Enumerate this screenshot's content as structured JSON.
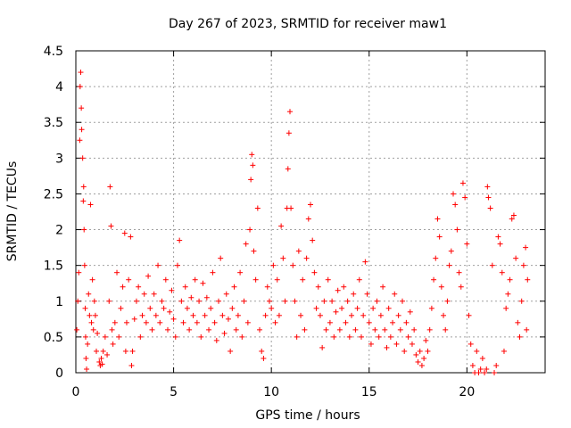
{
  "chart_data": {
    "type": "scatter",
    "title": "Day 267 of 2023, SRMTID for receiver maw1",
    "xlabel": "GPS time / hours",
    "ylabel": "SRMTID / TECUs",
    "xlim": [
      0,
      24
    ],
    "ylim": [
      0,
      4.5
    ],
    "x_ticks": [
      0,
      5,
      10,
      15,
      20
    ],
    "y_ticks": [
      0,
      0.5,
      1,
      1.5,
      2,
      2.5,
      3,
      3.5,
      4,
      4.5
    ],
    "x_tick_labels": [
      "0",
      "5",
      "10",
      "15",
      "20"
    ],
    "y_tick_labels": [
      "0",
      "0.5",
      "1",
      "1.5",
      "2",
      "2.5",
      "3",
      "3.5",
      "4",
      "4.5"
    ],
    "grid": true,
    "marker": "+",
    "color": "#ff0000",
    "series": [
      {
        "name": "maw1",
        "points": [
          [
            0.05,
            0.6
          ],
          [
            0.1,
            1.0
          ],
          [
            0.15,
            1.4
          ],
          [
            0.2,
            3.25
          ],
          [
            0.22,
            4.0
          ],
          [
            0.25,
            4.2
          ],
          [
            0.28,
            3.7
          ],
          [
            0.3,
            3.4
          ],
          [
            0.35,
            3.0
          ],
          [
            0.38,
            2.4
          ],
          [
            0.4,
            2.6
          ],
          [
            0.42,
            2.0
          ],
          [
            0.45,
            1.5
          ],
          [
            0.48,
            0.9
          ],
          [
            0.5,
            0.5
          ],
          [
            0.52,
            0.2
          ],
          [
            0.55,
            0.05
          ],
          [
            0.6,
            0.4
          ],
          [
            0.65,
            1.1
          ],
          [
            0.7,
            0.8
          ],
          [
            0.75,
            2.35
          ],
          [
            0.8,
            0.7
          ],
          [
            0.85,
            1.3
          ],
          [
            0.9,
            0.6
          ],
          [
            0.95,
            1.0
          ],
          [
            1.0,
            0.8
          ],
          [
            1.05,
            0.3
          ],
          [
            1.1,
            0.55
          ],
          [
            1.2,
            0.15
          ],
          [
            1.25,
            0.1
          ],
          [
            1.3,
            0.2
          ],
          [
            1.35,
            0.12
          ],
          [
            1.4,
            0.3
          ],
          [
            1.5,
            0.5
          ],
          [
            1.6,
            0.25
          ],
          [
            1.7,
            1.0
          ],
          [
            1.75,
            2.6
          ],
          [
            1.8,
            2.05
          ],
          [
            1.85,
            0.6
          ],
          [
            1.9,
            0.4
          ],
          [
            2.0,
            0.7
          ],
          [
            2.1,
            1.4
          ],
          [
            2.2,
            0.5
          ],
          [
            2.3,
            0.9
          ],
          [
            2.4,
            1.2
          ],
          [
            2.5,
            1.95
          ],
          [
            2.55,
            0.3
          ],
          [
            2.6,
            0.7
          ],
          [
            2.7,
            1.3
          ],
          [
            2.8,
            1.9
          ],
          [
            2.85,
            0.1
          ],
          [
            2.9,
            0.3
          ],
          [
            3.0,
            0.75
          ],
          [
            3.1,
            1.0
          ],
          [
            3.2,
            1.2
          ],
          [
            3.3,
            0.5
          ],
          [
            3.4,
            0.8
          ],
          [
            3.5,
            1.1
          ],
          [
            3.6,
            0.7
          ],
          [
            3.7,
            1.35
          ],
          [
            3.8,
            0.9
          ],
          [
            3.9,
            0.6
          ],
          [
            4.0,
            1.1
          ],
          [
            4.1,
            0.8
          ],
          [
            4.2,
            1.5
          ],
          [
            4.3,
            0.7
          ],
          [
            4.4,
            1.0
          ],
          [
            4.5,
            0.9
          ],
          [
            4.6,
            1.3
          ],
          [
            4.7,
            0.6
          ],
          [
            4.8,
            0.85
          ],
          [
            4.9,
            1.15
          ],
          [
            5.0,
            0.75
          ],
          [
            5.1,
            0.5
          ],
          [
            5.2,
            1.5
          ],
          [
            5.3,
            1.85
          ],
          [
            5.4,
            1.0
          ],
          [
            5.5,
            0.7
          ],
          [
            5.6,
            1.2
          ],
          [
            5.7,
            0.9
          ],
          [
            5.8,
            0.6
          ],
          [
            5.9,
            1.05
          ],
          [
            6.0,
            0.8
          ],
          [
            6.1,
            1.3
          ],
          [
            6.2,
            0.7
          ],
          [
            6.3,
            1.0
          ],
          [
            6.4,
            0.5
          ],
          [
            6.5,
            1.25
          ],
          [
            6.6,
            0.8
          ],
          [
            6.7,
            1.05
          ],
          [
            6.8,
            0.6
          ],
          [
            6.9,
            0.9
          ],
          [
            7.0,
            1.4
          ],
          [
            7.1,
            0.7
          ],
          [
            7.2,
            0.45
          ],
          [
            7.3,
            1.0
          ],
          [
            7.4,
            1.6
          ],
          [
            7.5,
            0.8
          ],
          [
            7.6,
            0.55
          ],
          [
            7.7,
            1.1
          ],
          [
            7.8,
            0.75
          ],
          [
            7.9,
            0.3
          ],
          [
            8.0,
            0.9
          ],
          [
            8.1,
            1.2
          ],
          [
            8.2,
            0.6
          ],
          [
            8.3,
            0.8
          ],
          [
            8.4,
            1.4
          ],
          [
            8.5,
            0.5
          ],
          [
            8.6,
            1.0
          ],
          [
            8.7,
            1.8
          ],
          [
            8.8,
            0.7
          ],
          [
            8.9,
            2.0
          ],
          [
            8.95,
            2.7
          ],
          [
            9.0,
            3.05
          ],
          [
            9.05,
            2.9
          ],
          [
            9.1,
            1.7
          ],
          [
            9.2,
            1.3
          ],
          [
            9.3,
            2.3
          ],
          [
            9.4,
            0.6
          ],
          [
            9.5,
            0.3
          ],
          [
            9.6,
            0.2
          ],
          [
            9.7,
            0.8
          ],
          [
            9.8,
            1.2
          ],
          [
            9.9,
            1.0
          ],
          [
            10.0,
            0.9
          ],
          [
            10.1,
            1.5
          ],
          [
            10.2,
            0.7
          ],
          [
            10.3,
            1.3
          ],
          [
            10.4,
            0.8
          ],
          [
            10.5,
            2.05
          ],
          [
            10.6,
            1.6
          ],
          [
            10.7,
            1.0
          ],
          [
            10.8,
            2.3
          ],
          [
            10.85,
            2.85
          ],
          [
            10.9,
            3.35
          ],
          [
            10.95,
            3.65
          ],
          [
            11.0,
            2.3
          ],
          [
            11.1,
            1.5
          ],
          [
            11.2,
            1.0
          ],
          [
            11.3,
            0.5
          ],
          [
            11.4,
            1.7
          ],
          [
            11.5,
            0.8
          ],
          [
            11.6,
            1.3
          ],
          [
            11.7,
            0.6
          ],
          [
            11.8,
            1.6
          ],
          [
            11.9,
            2.15
          ],
          [
            12.0,
            2.35
          ],
          [
            12.1,
            1.85
          ],
          [
            12.2,
            1.4
          ],
          [
            12.3,
            0.9
          ],
          [
            12.4,
            1.2
          ],
          [
            12.5,
            0.8
          ],
          [
            12.6,
            0.35
          ],
          [
            12.7,
            1.0
          ],
          [
            12.8,
            0.6
          ],
          [
            12.9,
            1.3
          ],
          [
            13.0,
            0.7
          ],
          [
            13.1,
            1.0
          ],
          [
            13.2,
            0.5
          ],
          [
            13.3,
            0.85
          ],
          [
            13.4,
            1.15
          ],
          [
            13.5,
            0.6
          ],
          [
            13.6,
            0.9
          ],
          [
            13.7,
            1.2
          ],
          [
            13.8,
            0.7
          ],
          [
            13.9,
            1.0
          ],
          [
            14.0,
            0.5
          ],
          [
            14.1,
            0.8
          ],
          [
            14.2,
            1.1
          ],
          [
            14.3,
            0.6
          ],
          [
            14.4,
            0.9
          ],
          [
            14.5,
            1.3
          ],
          [
            14.6,
            0.5
          ],
          [
            14.7,
            0.8
          ],
          [
            14.8,
            1.55
          ],
          [
            14.9,
            1.1
          ],
          [
            15.0,
            0.7
          ],
          [
            15.1,
            0.4
          ],
          [
            15.2,
            0.9
          ],
          [
            15.3,
            0.6
          ],
          [
            15.4,
            1.0
          ],
          [
            15.5,
            0.5
          ],
          [
            15.6,
            0.8
          ],
          [
            15.7,
            1.2
          ],
          [
            15.8,
            0.6
          ],
          [
            15.9,
            0.35
          ],
          [
            16.0,
            0.9
          ],
          [
            16.1,
            0.5
          ],
          [
            16.2,
            0.7
          ],
          [
            16.3,
            1.1
          ],
          [
            16.4,
            0.4
          ],
          [
            16.5,
            0.8
          ],
          [
            16.6,
            0.6
          ],
          [
            16.7,
            1.0
          ],
          [
            16.8,
            0.3
          ],
          [
            16.9,
            0.7
          ],
          [
            17.0,
            0.5
          ],
          [
            17.1,
            0.85
          ],
          [
            17.2,
            0.4
          ],
          [
            17.3,
            0.6
          ],
          [
            17.4,
            0.25
          ],
          [
            17.5,
            0.15
          ],
          [
            17.6,
            0.3
          ],
          [
            17.7,
            0.1
          ],
          [
            17.8,
            0.2
          ],
          [
            17.9,
            0.45
          ],
          [
            18.0,
            0.3
          ],
          [
            18.1,
            0.6
          ],
          [
            18.2,
            0.9
          ],
          [
            18.3,
            1.3
          ],
          [
            18.4,
            1.6
          ],
          [
            18.5,
            2.15
          ],
          [
            18.6,
            1.9
          ],
          [
            18.7,
            1.2
          ],
          [
            18.8,
            0.8
          ],
          [
            18.9,
            0.6
          ],
          [
            19.0,
            1.0
          ],
          [
            19.1,
            1.5
          ],
          [
            19.2,
            1.7
          ],
          [
            19.3,
            2.5
          ],
          [
            19.4,
            2.35
          ],
          [
            19.5,
            2.0
          ],
          [
            19.6,
            1.4
          ],
          [
            19.7,
            1.2
          ],
          [
            19.8,
            2.65
          ],
          [
            19.9,
            2.45
          ],
          [
            20.0,
            1.8
          ],
          [
            20.1,
            0.8
          ],
          [
            20.2,
            0.4
          ],
          [
            20.3,
            0.1
          ],
          [
            20.4,
            0.0
          ],
          [
            20.5,
            0.3
          ],
          [
            20.6,
            0.0
          ],
          [
            20.7,
            0.05
          ],
          [
            20.8,
            0.2
          ],
          [
            20.9,
            0.0
          ],
          [
            21.0,
            0.05
          ],
          [
            21.05,
            2.6
          ],
          [
            21.1,
            2.45
          ],
          [
            21.2,
            2.3
          ],
          [
            21.3,
            1.5
          ],
          [
            21.4,
            0.0
          ],
          [
            21.5,
            0.1
          ],
          [
            21.6,
            1.9
          ],
          [
            21.7,
            1.8
          ],
          [
            21.8,
            1.4
          ],
          [
            21.9,
            0.3
          ],
          [
            22.0,
            0.9
          ],
          [
            22.1,
            1.1
          ],
          [
            22.2,
            1.3
          ],
          [
            22.3,
            2.15
          ],
          [
            22.4,
            2.2
          ],
          [
            22.5,
            1.6
          ],
          [
            22.6,
            0.7
          ],
          [
            22.7,
            0.5
          ],
          [
            22.8,
            1.0
          ],
          [
            22.9,
            1.5
          ],
          [
            23.0,
            1.75
          ],
          [
            23.05,
            0.6
          ],
          [
            23.1,
            1.3
          ]
        ]
      }
    ]
  }
}
